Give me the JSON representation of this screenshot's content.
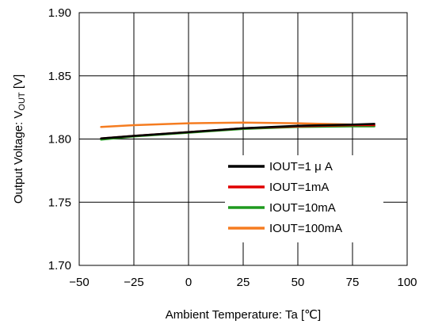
{
  "chart_data": {
    "type": "line",
    "xlabel": "Ambient Temperature: Ta [℃]",
    "ylabel_main": "Output Voltage: V",
    "ylabel_sub": "OUT",
    "ylabel_unit": " [V]",
    "xlim": [
      -50,
      100
    ],
    "ylim": [
      1.7,
      1.9
    ],
    "x_ticks": [
      -50,
      -25,
      0,
      25,
      50,
      75,
      100
    ],
    "x_tick_labels": [
      "−50",
      "−25",
      "0",
      "25",
      "50",
      "75",
      "100"
    ],
    "y_ticks": [
      1.7,
      1.75,
      1.8,
      1.85,
      1.9
    ],
    "y_tick_labels": [
      "1.70",
      "1.75",
      "1.80",
      "1.85",
      "1.90"
    ],
    "grid": true,
    "legend_position": "lower-right",
    "series": [
      {
        "name": "IOUT=1 μ A",
        "color": "#000000",
        "x": [
          -40,
          -25,
          0,
          25,
          50,
          75,
          85
        ],
        "y": [
          1.8005,
          1.8025,
          1.8055,
          1.8085,
          1.8105,
          1.8115,
          1.812
        ]
      },
      {
        "name": "IOUT=1mA",
        "color": "#e00000",
        "x": [
          -40,
          -25,
          0,
          25,
          50,
          75,
          85
        ],
        "y": [
          1.8005,
          1.8025,
          1.8055,
          1.8085,
          1.81,
          1.811,
          1.811
        ]
      },
      {
        "name": "IOUT=10mA",
        "color": "#1e9a1e",
        "x": [
          -40,
          -25,
          0,
          25,
          50,
          75,
          85
        ],
        "y": [
          1.7995,
          1.802,
          1.805,
          1.808,
          1.8095,
          1.81,
          1.81
        ]
      },
      {
        "name": "IOUT=100mA",
        "color": "#f57c20",
        "x": [
          -40,
          -25,
          0,
          25,
          50,
          75,
          85
        ],
        "y": [
          1.8095,
          1.811,
          1.8125,
          1.813,
          1.8125,
          1.8115,
          1.811
        ]
      }
    ]
  }
}
